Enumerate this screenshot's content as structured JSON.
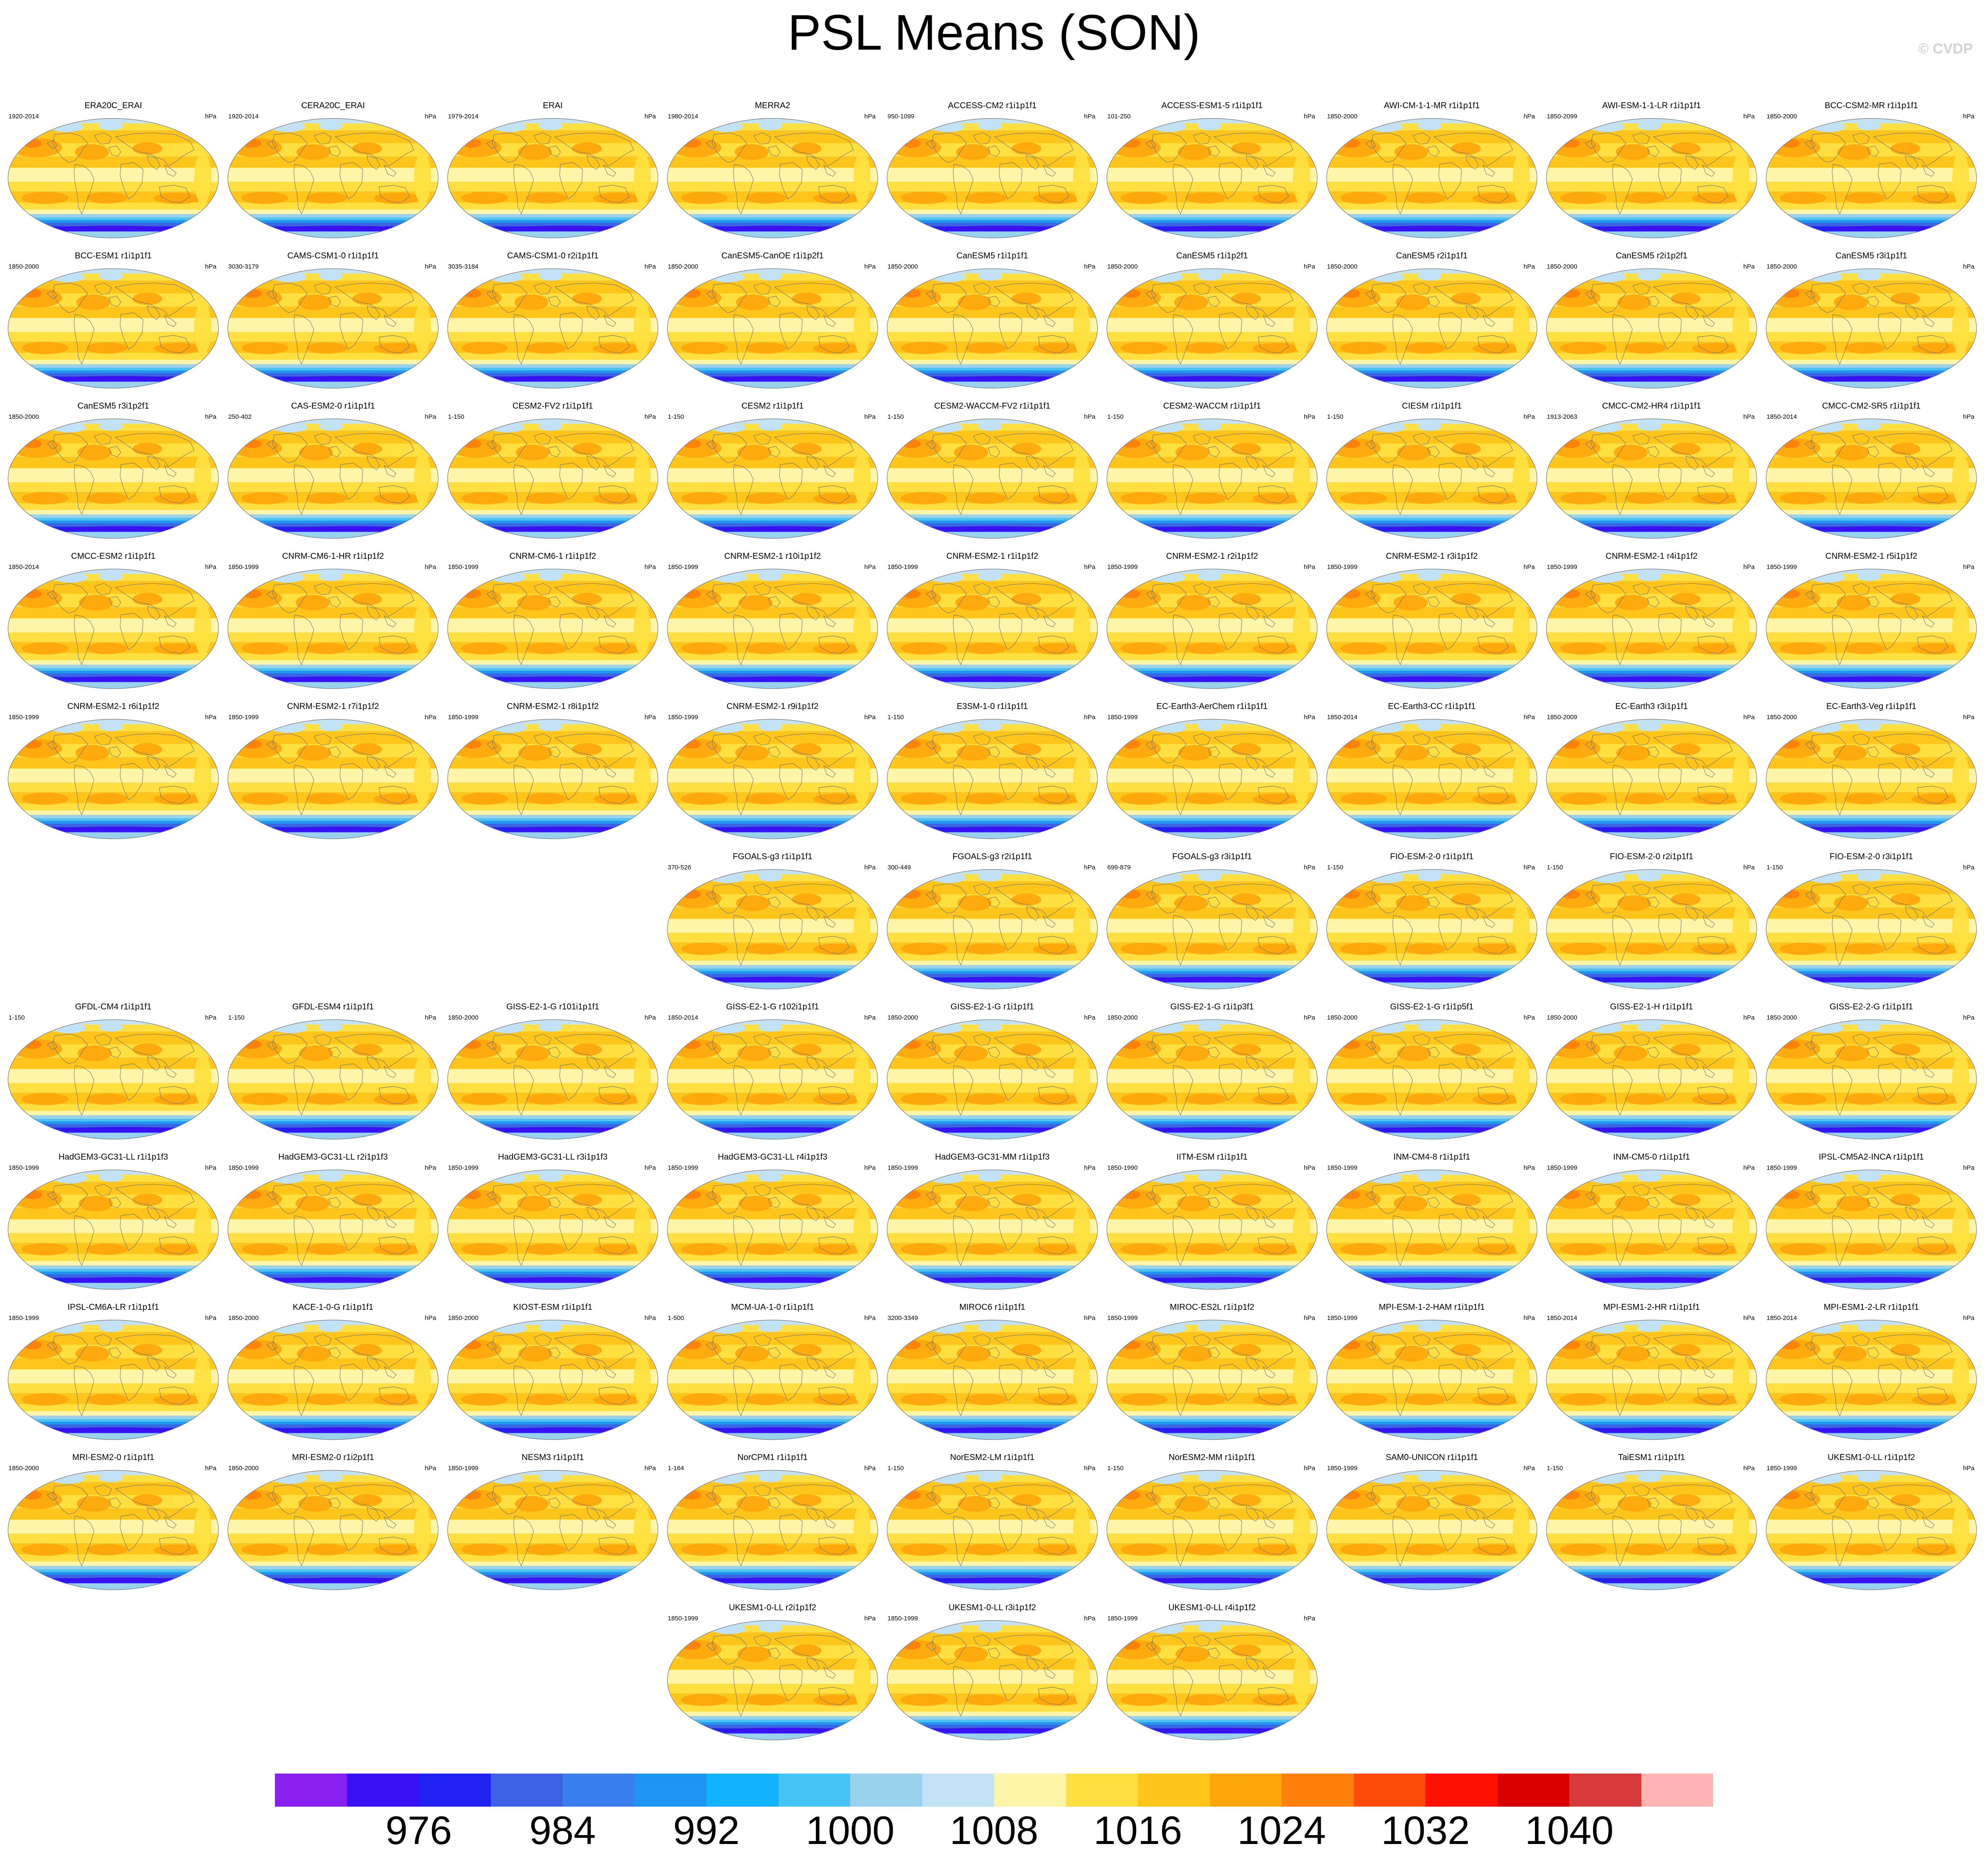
{
  "title": "PSL Means (SON)",
  "credit": "© CVDP",
  "units": "hPa",
  "colorbar": {
    "colors": [
      "#8a20f0",
      "#3a10f5",
      "#1f22f0",
      "#3d62e5",
      "#3a7ff0",
      "#1e95f5",
      "#13b3ff",
      "#45c4f5",
      "#98d2ec",
      "#c2e3f7",
      "#fff5a8",
      "#ffe040",
      "#ffc51a",
      "#ffa60d",
      "#ff800a",
      "#ff4a0a",
      "#ff1000",
      "#d90000",
      "#d63a3a",
      "#ffb3b3"
    ],
    "tick_labels": [
      "976",
      "984",
      "992",
      "1000",
      "1008",
      "1016",
      "1024",
      "1032",
      "1040"
    ]
  },
  "panels": [
    {
      "title": "ERA20C_ERAI",
      "years": "1920-2014"
    },
    {
      "title": "CERA20C_ERAI",
      "years": "1920-2014"
    },
    {
      "title": "ERAI",
      "years": "1979-2014"
    },
    {
      "title": "MERRA2",
      "years": "1980-2014"
    },
    {
      "title": "ACCESS-CM2 r1i1p1f1",
      "years": "950-1099"
    },
    {
      "title": "ACCESS-ESM1-5 r1i1p1f1",
      "years": "101-250"
    },
    {
      "title": "AWI-CM-1-1-MR r1i1p1f1",
      "years": "1850-2000"
    },
    {
      "title": "AWI-ESM-1-1-LR r1i1p1f1",
      "years": "1850-2099"
    },
    {
      "title": "BCC-CSM2-MR r1i1p1f1",
      "years": "1850-2000"
    },
    {
      "title": "BCC-ESM1 r1i1p1f1",
      "years": "1850-2000"
    },
    {
      "title": "CAMS-CSM1-0 r1i1p1f1",
      "years": "3030-3179"
    },
    {
      "title": "CAMS-CSM1-0 r2i1p1f1",
      "years": "3035-3184"
    },
    {
      "title": "CanESM5-CanOE r1i1p2f1",
      "years": "1850-2000"
    },
    {
      "title": "CanESM5 r1i1p1f1",
      "years": "1850-2000"
    },
    {
      "title": "CanESM5 r1i1p2f1",
      "years": "1850-2000"
    },
    {
      "title": "CanESM5 r2i1p1f1",
      "years": "1850-2000"
    },
    {
      "title": "CanESM5 r2i1p2f1",
      "years": "1850-2000"
    },
    {
      "title": "CanESM5 r3i1p1f1",
      "years": "1850-2000"
    },
    {
      "title": "CanESM5 r3i1p2f1",
      "years": "1850-2000"
    },
    {
      "title": "CAS-ESM2-0 r1i1p1f1",
      "years": "250-402"
    },
    {
      "title": "CESM2-FV2 r1i1p1f1",
      "years": "1-150"
    },
    {
      "title": "CESM2 r1i1p1f1",
      "years": "1-150"
    },
    {
      "title": "CESM2-WACCM-FV2 r1i1p1f1",
      "years": "1-150"
    },
    {
      "title": "CESM2-WACCM r1i1p1f1",
      "years": "1-150"
    },
    {
      "title": "CIESM r1i1p1f1",
      "years": "1-150"
    },
    {
      "title": "CMCC-CM2-HR4 r1i1p1f1",
      "years": "1913-2063"
    },
    {
      "title": "CMCC-CM2-SR5 r1i1p1f1",
      "years": "1850-2014"
    },
    {
      "title": "CMCC-ESM2 r1i1p1f1",
      "years": "1850-2014"
    },
    {
      "title": "CNRM-CM6-1-HR r1i1p1f2",
      "years": "1850-1999"
    },
    {
      "title": "CNRM-CM6-1 r1i1p1f2",
      "years": "1850-1999"
    },
    {
      "title": "CNRM-ESM2-1 r10i1p1f2",
      "years": "1850-1999"
    },
    {
      "title": "CNRM-ESM2-1 r1i1p1f2",
      "years": "1850-1999"
    },
    {
      "title": "CNRM-ESM2-1 r2i1p1f2",
      "years": "1850-1999"
    },
    {
      "title": "CNRM-ESM2-1 r3i1p1f2",
      "years": "1850-1999"
    },
    {
      "title": "CNRM-ESM2-1 r4i1p1f2",
      "years": "1850-1999"
    },
    {
      "title": "CNRM-ESM2-1 r5i1p1f2",
      "years": "1850-1999"
    },
    {
      "title": "CNRM-ESM2-1 r6i1p1f2",
      "years": "1850-1999"
    },
    {
      "title": "CNRM-ESM2-1 r7i1p1f2",
      "years": "1850-1999"
    },
    {
      "title": "CNRM-ESM2-1 r8i1p1f2",
      "years": "1850-1999"
    },
    {
      "title": "CNRM-ESM2-1 r9i1p1f2",
      "years": "1850-1999"
    },
    {
      "title": "E3SM-1-0 r1i1p1f1",
      "years": "1-150"
    },
    {
      "title": "EC-Earth3-AerChem r1i1p1f1",
      "years": "1850-1999"
    },
    {
      "title": "EC-Earth3-CC r1i1p1f1",
      "years": "1850-2014"
    },
    {
      "title": "EC-Earth3 r3i1p1f1",
      "years": "1850-2009"
    },
    {
      "title": "EC-Earth3-Veg r1i1p1f1",
      "years": "1850-2000"
    },
    {
      "title": "FGOALS-g3 r1i1p1f1",
      "years": "370-526"
    },
    {
      "title": "FGOALS-g3 r2i1p1f1",
      "years": "300-449"
    },
    {
      "title": "FGOALS-g3 r3i1p1f1",
      "years": "699-879"
    },
    {
      "title": "FIO-ESM-2-0 r1i1p1f1",
      "years": "1-150"
    },
    {
      "title": "FIO-ESM-2-0 r2i1p1f1",
      "years": "1-150"
    },
    {
      "title": "FIO-ESM-2-0 r3i1p1f1",
      "years": "1-150"
    },
    {
      "title": "GFDL-CM4 r1i1p1f1",
      "years": "1-150"
    },
    {
      "title": "GFDL-ESM4 r1i1p1f1",
      "years": "1-150"
    },
    {
      "title": "GISS-E2-1-G r101i1p1f1",
      "years": "1850-2000"
    },
    {
      "title": "GISS-E2-1-G r102i1p1f1",
      "years": "1850-2014"
    },
    {
      "title": "GISS-E2-1-G r1i1p1f1",
      "years": "1850-2000"
    },
    {
      "title": "GISS-E2-1-G r1i1p3f1",
      "years": "1850-2000"
    },
    {
      "title": "GISS-E2-1-G r1i1p5f1",
      "years": "1850-2000"
    },
    {
      "title": "GISS-E2-1-H r1i1p1f1",
      "years": "1850-2000"
    },
    {
      "title": "GISS-E2-2-G r1i1p1f1",
      "years": "1850-2000"
    },
    {
      "title": "HadGEM3-GC31-LL r1i1p1f3",
      "years": "1850-1999"
    },
    {
      "title": "HadGEM3-GC31-LL r2i1p1f3",
      "years": "1850-1999"
    },
    {
      "title": "HadGEM3-GC31-LL r3i1p1f3",
      "years": "1850-1999"
    },
    {
      "title": "HadGEM3-GC31-LL r4i1p1f3",
      "years": "1850-1999"
    },
    {
      "title": "HadGEM3-GC31-MM r1i1p1f3",
      "years": "1850-1999"
    },
    {
      "title": "IITM-ESM r1i1p1f1",
      "years": "1850-1990"
    },
    {
      "title": "INM-CM4-8 r1i1p1f1",
      "years": "1850-1999"
    },
    {
      "title": "INM-CM5-0 r1i1p1f1",
      "years": "1850-1999"
    },
    {
      "title": "IPSL-CM5A2-INCA r1i1p1f1",
      "years": "1850-1999"
    },
    {
      "title": "IPSL-CM6A-LR r1i1p1f1",
      "years": "1850-1999"
    },
    {
      "title": "KACE-1-0-G r1i1p1f1",
      "years": "1850-2000"
    },
    {
      "title": "KIOST-ESM r1i1p1f1",
      "years": "1850-2000"
    },
    {
      "title": "MCM-UA-1-0 r1i1p1f1",
      "years": "1-500"
    },
    {
      "title": "MIROC6 r1i1p1f1",
      "years": "3200-3349"
    },
    {
      "title": "MIROC-ES2L r1i1p1f2",
      "years": "1850-1999"
    },
    {
      "title": "MPI-ESM-1-2-HAM r1i1p1f1",
      "years": "1850-1999"
    },
    {
      "title": "MPI-ESM1-2-HR r1i1p1f1",
      "years": "1850-2014"
    },
    {
      "title": "MPI-ESM1-2-LR r1i1p1f1",
      "years": "1850-2014"
    },
    {
      "title": "MRI-ESM2-0 r1i1p1f1",
      "years": "1850-2000"
    },
    {
      "title": "MRI-ESM2-0 r1i2p1f1",
      "years": "1850-2000"
    },
    {
      "title": "NESM3 r1i1p1f1",
      "years": "1850-1999"
    },
    {
      "title": "NorCPM1 r1i1p1f1",
      "years": "1-164"
    },
    {
      "title": "NorESM2-LM r1i1p1f1",
      "years": "1-150"
    },
    {
      "title": "NorESM2-MM r1i1p1f1",
      "years": "1-150"
    },
    {
      "title": "SAM0-UNICON r1i1p1f1",
      "years": "1850-1999"
    },
    {
      "title": "TaiESM1 r1i1p1f1",
      "years": "1-150"
    },
    {
      "title": "UKESM1-0-LL r1i1p1f2",
      "years": "1850-1999"
    },
    {
      "title": "UKESM1-0-LL r2i1p1f2",
      "years": "1850-1999"
    },
    {
      "title": "UKESM1-0-LL r3i1p1f2",
      "years": "1850-1999"
    },
    {
      "title": "UKESM1-0-LL r4i1p1f2",
      "years": "1850-1999"
    }
  ]
}
